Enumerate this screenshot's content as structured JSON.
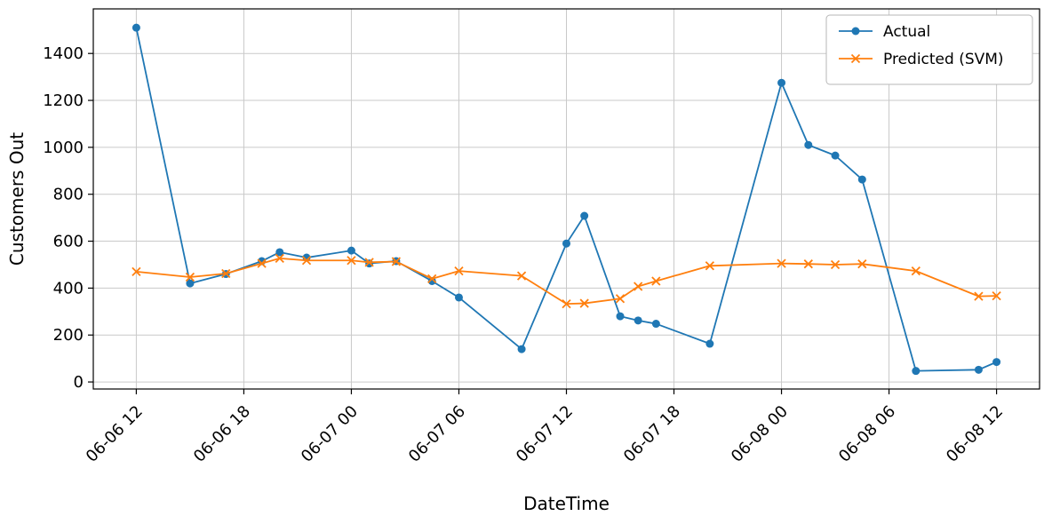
{
  "chart_data": {
    "type": "line",
    "title": "",
    "xlabel": "DateTime",
    "ylabel": "Customers Out",
    "x_unit": "hours since 06-06 12:00",
    "xlim": [
      -2.4,
      50.4
    ],
    "ylim": [
      -30,
      1590
    ],
    "grid": true,
    "legend_position": "upper right",
    "background_color": "#ffffff",
    "grid_color": "#c9c9c9",
    "x_ticks": [
      {
        "value": 0,
        "label": "06-06 12"
      },
      {
        "value": 6,
        "label": "06-06 18"
      },
      {
        "value": 12,
        "label": "06-07 00"
      },
      {
        "value": 18,
        "label": "06-07 06"
      },
      {
        "value": 24,
        "label": "06-07 12"
      },
      {
        "value": 30,
        "label": "06-07 18"
      },
      {
        "value": 36,
        "label": "06-08 00"
      },
      {
        "value": 42,
        "label": "06-08 06"
      },
      {
        "value": 48,
        "label": "06-08 12"
      }
    ],
    "y_ticks": [
      0,
      200,
      400,
      600,
      800,
      1000,
      1200,
      1400
    ],
    "x": [
      0,
      3,
      5,
      7,
      8,
      9.5,
      12,
      13,
      14.5,
      16.5,
      18,
      21.5,
      24,
      25,
      27,
      28,
      29,
      32,
      36,
      37.5,
      39,
      40.5,
      43.5,
      47,
      48
    ],
    "series": [
      {
        "name": "Actual",
        "color": "#1f77b4",
        "marker": "circle",
        "values": [
          1510,
          420,
          460,
          515,
          553,
          530,
          560,
          505,
          515,
          430,
          360,
          140,
          590,
          708,
          280,
          262,
          248,
          163,
          1275,
          1010,
          965,
          863,
          47,
          52,
          85
        ]
      },
      {
        "name": "Predicted (SVM)",
        "color": "#ff7f0e",
        "marker": "x",
        "values": [
          470,
          447,
          462,
          505,
          527,
          518,
          518,
          510,
          513,
          440,
          473,
          452,
          333,
          335,
          355,
          407,
          430,
          495,
          505,
          503,
          500,
          503,
          473,
          365,
          367
        ]
      }
    ]
  }
}
